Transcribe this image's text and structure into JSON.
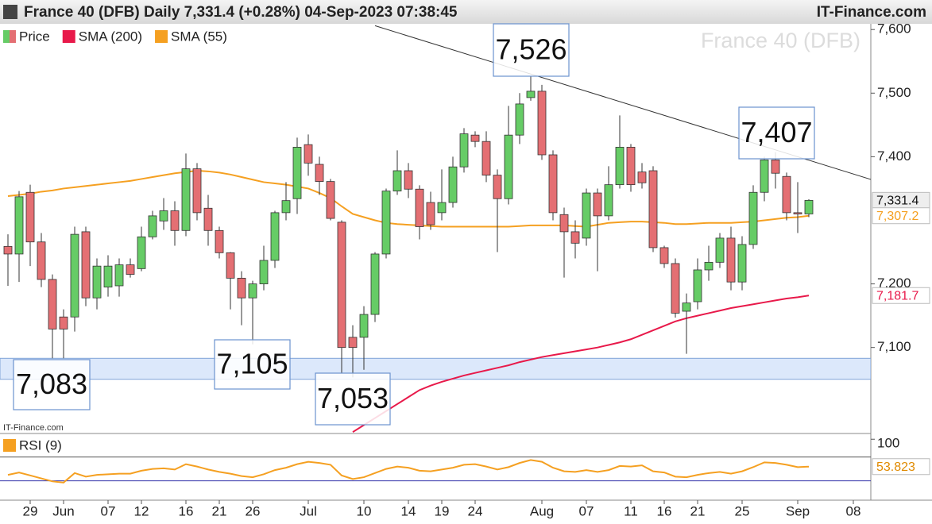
{
  "header": {
    "title": "France 40 (DFB) Daily 7,331.4 (+0.28%) 04-Sep-2023 07:38:45",
    "source": "IT-Finance.com"
  },
  "chart_data": [
    {
      "type": "candlestick",
      "watermark": "France 40 (DFB)",
      "credit": "IT-Finance.com",
      "categories": [
        null,
        null,
        "29",
        null,
        null,
        "Jun",
        null,
        null,
        null,
        "07",
        null,
        null,
        "12",
        null,
        null,
        null,
        "16",
        null,
        null,
        "21",
        null,
        null,
        "26",
        null,
        null,
        null,
        null,
        "Jul",
        null,
        null,
        null,
        null,
        "10",
        null,
        null,
        null,
        "14",
        null,
        null,
        "19",
        null,
        null,
        "24",
        null,
        null,
        null,
        null,
        null,
        "Aug",
        null,
        null,
        null,
        "07",
        null,
        null,
        null,
        "11",
        null,
        null,
        "16",
        null,
        null,
        "21",
        null,
        null,
        null,
        "25",
        null,
        null,
        null,
        null,
        "Sep",
        null,
        null,
        null,
        null,
        "08"
      ],
      "ohlc": {
        "name": "Price",
        "up_color": "#66cc66",
        "down_color": "#e46f73",
        "close_label": "7,331.4",
        "open": [
          7259,
          7247,
          7344,
          7266,
          7207,
          7148,
          7148,
          7282,
          7178,
          7195,
          7197,
          7230,
          7224,
          7274,
          7299,
          7315,
          7284,
          7381,
          7319,
          7284,
          7249,
          7209,
          7178,
          7200,
          7237,
          7312,
          7334,
          7419,
          7388,
          7361,
          7297,
          7116,
          7116,
          7152,
          7247,
          7346,
          7378,
          7349,
          7328,
          7312,
          7328,
          7384,
          7434,
          7424,
          7371,
          7334,
          7434,
          7493,
          7503,
          7403,
          7309,
          7282,
          7272,
          7343,
          7307,
          7356,
          7415,
          7376,
          7378,
          7257,
          7232,
          7157,
          7172,
          7222,
          7234,
          7272,
          7203,
          7262,
          7344,
          7395,
          7369,
          7312,
          7310,
          null,
          null,
          null,
          null
        ],
        "high": [
          7278,
          7346,
          7356,
          7280,
          7215,
          7160,
          7290,
          7290,
          7240,
          7245,
          7240,
          7240,
          7290,
          7315,
          7335,
          7330,
          7405,
          7390,
          7340,
          7290,
          7250,
          7220,
          7205,
          7260,
          7315,
          7360,
          7430,
          7435,
          7400,
          7365,
          7300,
          7135,
          7165,
          7250,
          7350,
          7410,
          7390,
          7355,
          7345,
          7380,
          7400,
          7445,
          7440,
          7440,
          7380,
          7480,
          7500,
          7526,
          7513,
          7410,
          7320,
          7300,
          7350,
          7350,
          7385,
          7465,
          7420,
          7390,
          7385,
          7260,
          7240,
          7185,
          7240,
          7260,
          7280,
          7290,
          7275,
          7355,
          7400,
          7407,
          7375,
          7360,
          7333,
          null,
          null,
          null,
          null
        ],
        "low": [
          7197,
          7203,
          7228,
          7195,
          7083,
          7083,
          7125,
          7165,
          7160,
          7180,
          7180,
          7210,
          7220,
          7270,
          7285,
          7260,
          7275,
          7300,
          7260,
          7240,
          7160,
          7135,
          7105,
          7190,
          7225,
          7300,
          7310,
          7370,
          7340,
          7300,
          7060,
          7053,
          7065,
          7140,
          7240,
          7340,
          7335,
          7270,
          7285,
          7300,
          7320,
          7375,
          7415,
          7360,
          7250,
          7325,
          7420,
          7488,
          7395,
          7300,
          7210,
          7240,
          7260,
          7220,
          7300,
          7350,
          7345,
          7350,
          7250,
          7225,
          7147,
          7090,
          7160,
          7205,
          7225,
          7190,
          7190,
          7255,
          7330,
          7350,
          7300,
          7280,
          7305,
          null,
          null,
          null,
          null
        ],
        "close": [
          7247,
          7337,
          7266,
          7207,
          7129,
          7129,
          7278,
          7178,
          7228,
          7228,
          7230,
          7215,
          7274,
          7307,
          7315,
          7284,
          7381,
          7312,
          7284,
          7249,
          7209,
          7178,
          7200,
          7237,
          7312,
          7331,
          7415,
          7390,
          7361,
          7303,
          7100,
          7100,
          7152,
          7247,
          7346,
          7378,
          7349,
          7290,
          7293,
          7328,
          7384,
          7436,
          7424,
          7371,
          7334,
          7434,
          7483,
          7503,
          7403,
          7312,
          7282,
          7264,
          7343,
          7307,
          7356,
          7415,
          7356,
          7359,
          7257,
          7232,
          7154,
          7170,
          7222,
          7234,
          7272,
          7203,
          7262,
          7344,
          7395,
          7374,
          7312,
          7310,
          7331.4,
          null,
          null,
          null,
          null
        ]
      },
      "series": [
        {
          "name": "SMA (200)",
          "color": "#e8194a",
          "last_label": "7,181.7",
          "values": [
            null,
            null,
            null,
            null,
            null,
            null,
            null,
            null,
            null,
            null,
            null,
            null,
            null,
            null,
            null,
            null,
            null,
            null,
            null,
            null,
            null,
            null,
            null,
            null,
            null,
            null,
            null,
            null,
            null,
            null,
            null,
            6967,
            6978,
            6989,
            7000,
            7011,
            7022,
            7033,
            7040,
            7046,
            7051,
            7056,
            7060,
            7064,
            7068,
            7072,
            7077,
            7081,
            7085,
            7088,
            7091,
            7094,
            7097,
            7100,
            7104,
            7108,
            7113,
            7120,
            7127,
            7134,
            7141,
            7146,
            7150,
            7154,
            7158,
            7162,
            7165,
            7168,
            7171,
            7174,
            7177,
            7179,
            7181.7,
            null,
            null,
            null,
            null
          ]
        },
        {
          "name": "SMA (55)",
          "color": "#f5a021",
          "last_label": "7,307.2",
          "values": [
            7338,
            7340,
            7342,
            7345,
            7347,
            7350,
            7352,
            7354,
            7356,
            7358,
            7360,
            7362,
            7365,
            7368,
            7371,
            7374,
            7376,
            7378,
            7377,
            7375,
            7372,
            7368,
            7364,
            7360,
            7358,
            7356,
            7353,
            7350,
            7343,
            7335,
            7322,
            7310,
            7305,
            7300,
            7296,
            7294,
            7293,
            7292,
            7291,
            7290,
            7290,
            7290,
            7290,
            7290,
            7290,
            7290,
            7291,
            7292,
            7292,
            7292,
            7292,
            7291,
            7290,
            7293,
            7296,
            7297,
            7298,
            7298,
            7297,
            7296,
            7294,
            7294,
            7295,
            7296,
            7296,
            7296,
            7297,
            7298,
            7300,
            7302,
            7304,
            7305,
            7307.2,
            null,
            null,
            null,
            null
          ]
        }
      ],
      "trendline": {
        "x": [
          33,
          78
        ],
        "values": [
          7606,
          7362
        ]
      },
      "support_zone": [
        7050,
        7083
      ],
      "annotations": [
        "7,526",
        "7,407",
        "7,105",
        "7,083",
        "7,053"
      ],
      "ylim": [
        6966,
        7609
      ],
      "yticks": [
        {
          "value": 7100,
          "label": "7,100"
        },
        {
          "value": 7200,
          "label": "7,200"
        },
        {
          "value": 7400,
          "label": "7,400"
        },
        {
          "value": 7500,
          "label": "7,500"
        },
        {
          "value": 7600,
          "label": "7,600"
        }
      ]
    },
    {
      "type": "line",
      "series": [
        {
          "name": "RSI (9)",
          "color": "#f5a021",
          "last_label": "53.823",
          "values": [
            40,
            44,
            39,
            34,
            29,
            27,
            43,
            37,
            40,
            41,
            42,
            42,
            47,
            50,
            51,
            49,
            58,
            54,
            49,
            45,
            42,
            38,
            36,
            41,
            48,
            52,
            58,
            62,
            60,
            57,
            39,
            33,
            36,
            43,
            50,
            54,
            52,
            47,
            46,
            49,
            52,
            57,
            58,
            54,
            49,
            53,
            60,
            65,
            62,
            52,
            46,
            45,
            48,
            45,
            48,
            55,
            54,
            56,
            46,
            44,
            37,
            36,
            40,
            43,
            45,
            42,
            46,
            53,
            61,
            60,
            57,
            53,
            53.823,
            null,
            null,
            null,
            null
          ]
        }
      ],
      "levels": [
        70,
        30
      ],
      "ylim": [
        0,
        107
      ],
      "yticks": [
        100
      ]
    }
  ]
}
